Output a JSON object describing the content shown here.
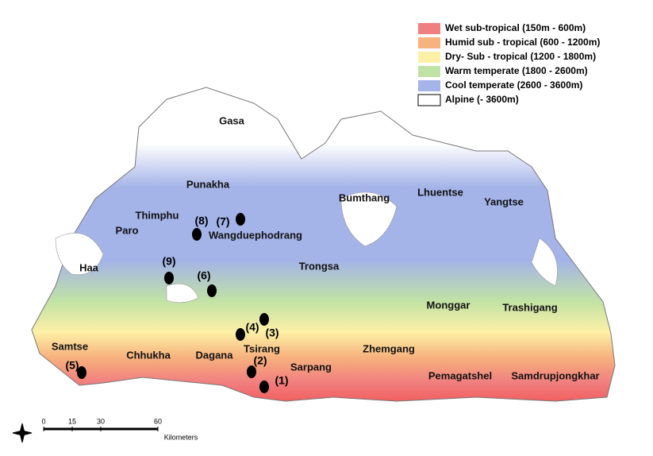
{
  "legend": [
    {
      "label": "Wet sub-tropical (150m - 600m)",
      "color": "#f07f7f"
    },
    {
      "label": "Humid sub - tropical (600 - 1200m)",
      "color": "#f7b27e"
    },
    {
      "label": "Dry- Sub - tropical (1200 - 1800m)",
      "color": "#fdf0a6"
    },
    {
      "label": "Warm temperate (1800 - 2600m)",
      "color": "#c1e2a5"
    },
    {
      "label": "Cool temperate (2600 - 3600m)",
      "color": "#a4b3e8"
    },
    {
      "label": "Alpine (- 3600m)",
      "color": "#ffffff"
    }
  ],
  "districts": [
    "Gasa",
    "Punakha",
    "Thimphu",
    "Paro",
    "Haa",
    "Wangduephodrang",
    "Bumthang",
    "Lhuentse",
    "Yangtse",
    "Trongsa",
    "Monggar",
    "Trashigang",
    "Samtse",
    "Chhukha",
    "Dagana",
    "Tsirang",
    "Zhemgang",
    "Sarpang",
    "Pemagatshel",
    "Samdrupjongkhar"
  ],
  "sites": [
    "(1)",
    "(2)",
    "(3)",
    "(4)",
    "(5)",
    "(6)",
    "(7)",
    "(8)",
    "(9)"
  ],
  "scale": {
    "ticks": [
      0,
      15,
      30,
      60
    ],
    "unit": "Kilometers"
  }
}
